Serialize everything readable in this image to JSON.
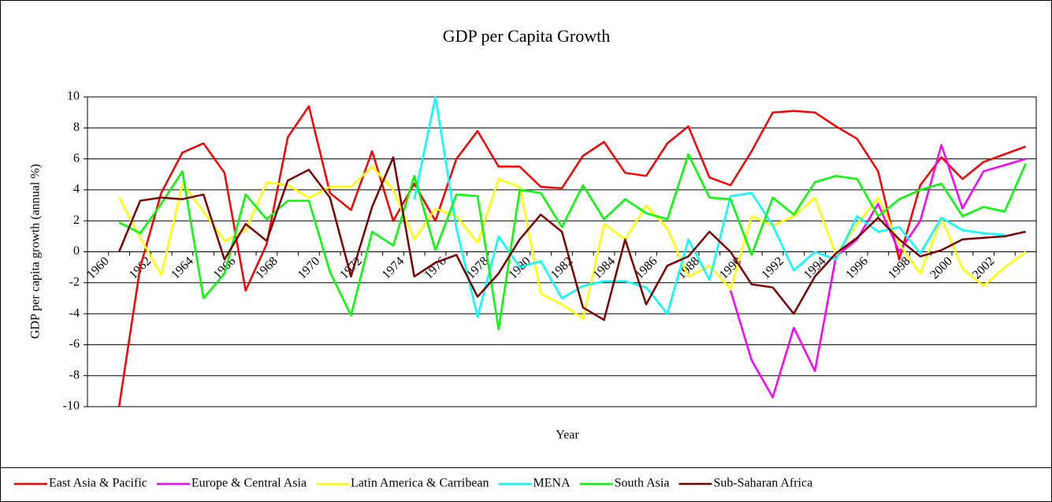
{
  "chart_data": {
    "type": "line",
    "title": "GDP per Capita Growth",
    "x_label": "Year",
    "y_label": "GDP per capita growth (annual %)",
    "categories": [
      "1960",
      null,
      "1962",
      null,
      "1964",
      null,
      "1966",
      null,
      "1968",
      null,
      "1970",
      null,
      "1972",
      null,
      "1974",
      null,
      "1976",
      null,
      "1978",
      null,
      "1980",
      null,
      "1982",
      null,
      "1984",
      null,
      "1986",
      null,
      "1988",
      null,
      "1990",
      null,
      "1992",
      null,
      "1994",
      null,
      "1996",
      null,
      "1998",
      null,
      "2000",
      null,
      "2002",
      null,
      null
    ],
    "ylim": [
      -10,
      10
    ],
    "yticks": [
      -10,
      -8,
      -6,
      -4,
      -2,
      0,
      2,
      4,
      6,
      8,
      10
    ],
    "grid": true,
    "legend": "bottom",
    "series": [
      {
        "name": "East Asia & Pacific",
        "color": "#ff0000",
        "values": [
          null,
          -10,
          -1,
          3.8,
          6.4,
          7.0,
          5.1,
          -2.5,
          0.5,
          7.4,
          9.4,
          3.8,
          2.7,
          6.5,
          2.0,
          4.4,
          2.0,
          6.0,
          7.8,
          5.5,
          5.5,
          4.2,
          4.1,
          6.2,
          7.1,
          5.1,
          4.9,
          7.0,
          8.1,
          4.8,
          4.3,
          6.5,
          9.0,
          9.1,
          9.0,
          8.1,
          7.3,
          5.2,
          -0.5,
          4.3,
          6.1,
          4.7,
          5.8,
          6.3,
          6.8
        ]
      },
      {
        "name": "Europe & Central Asia",
        "color": "#ff00ff",
        "values": [
          null,
          null,
          null,
          null,
          null,
          null,
          null,
          null,
          null,
          null,
          null,
          null,
          null,
          null,
          null,
          null,
          null,
          null,
          null,
          null,
          null,
          null,
          null,
          null,
          null,
          null,
          null,
          null,
          null,
          null,
          -2.5,
          -7,
          -9.4,
          -4.9,
          -7.7,
          -0.3,
          0.8,
          3.1,
          0,
          2.0,
          6.9,
          2.8,
          5.2,
          5.6,
          6.0
        ]
      },
      {
        "name": "Latin America & Carribean",
        "color": "#ffff00",
        "values": [
          null,
          3.5,
          0.9,
          -1.5,
          4.4,
          2.6,
          0.7,
          1.4,
          4.5,
          4.3,
          3.5,
          4.2,
          4.2,
          5.5,
          4.0,
          0.8,
          2.8,
          2.3,
          0.6,
          4.7,
          4.2,
          -2.7,
          -3.4,
          -4.3,
          1.8,
          0.8,
          3.0,
          1.5,
          -1.6,
          -0.9,
          -2.4,
          2.3,
          1.7,
          2.3,
          3.5,
          -0.2,
          1.8,
          3.5,
          0.5,
          -1.4,
          2.2,
          -1.1,
          -2.2,
          -1.0,
          0
        ]
      },
      {
        "name": "MENA",
        "color": "#00ffff",
        "values": [
          null,
          null,
          null,
          null,
          null,
          null,
          null,
          null,
          null,
          null,
          null,
          null,
          null,
          null,
          null,
          3.4,
          10,
          1.5,
          -4.2,
          1.0,
          -1.0,
          -0.6,
          -3.0,
          -2.2,
          -1.9,
          -1.9,
          -2.3,
          -4.0,
          0.8,
          -1.8,
          3.6,
          3.8,
          1.7,
          -1.2,
          0.0,
          -0.5,
          2.3,
          1.3,
          1.6,
          -0.1,
          2.2,
          1.4,
          1.2,
          1.1,
          null
        ]
      },
      {
        "name": "South Asia",
        "color": "#00ff00",
        "values": [
          null,
          1.9,
          1.2,
          3.1,
          5.2,
          -3.0,
          -1.4,
          3.7,
          2.1,
          3.3,
          3.3,
          -1.3,
          -4.1,
          1.3,
          0.4,
          4.9,
          0.1,
          3.7,
          3.6,
          -5.0,
          4.0,
          3.8,
          1.6,
          4.3,
          2.1,
          3.4,
          2.5,
          2.1,
          6.3,
          3.5,
          3.4,
          -0.2,
          3.5,
          2.4,
          4.5,
          4.9,
          4.7,
          2.3,
          3.4,
          4.0,
          4.4,
          2.3,
          2.9,
          2.6,
          5.7
        ]
      },
      {
        "name": "Sub-Saharan Africa",
        "color": "#800000",
        "values": [
          null,
          0,
          3.3,
          3.5,
          3.4,
          3.7,
          -0.5,
          1.8,
          0.7,
          4.6,
          5.3,
          3.5,
          -1.6,
          2.9,
          6.1,
          -1.6,
          -0.7,
          -0.2,
          -2.9,
          -1.4,
          0.8,
          2.4,
          1.3,
          -3.6,
          -4.4,
          0.8,
          -3.4,
          -0.9,
          -0.3,
          1.3,
          0.0,
          -2.1,
          -2.3,
          -4.0,
          -1.6,
          -0.1,
          0.9,
          2.2,
          0.8,
          -0.3,
          0.1,
          0.8,
          0.9,
          1.0,
          1.3
        ]
      }
    ]
  }
}
